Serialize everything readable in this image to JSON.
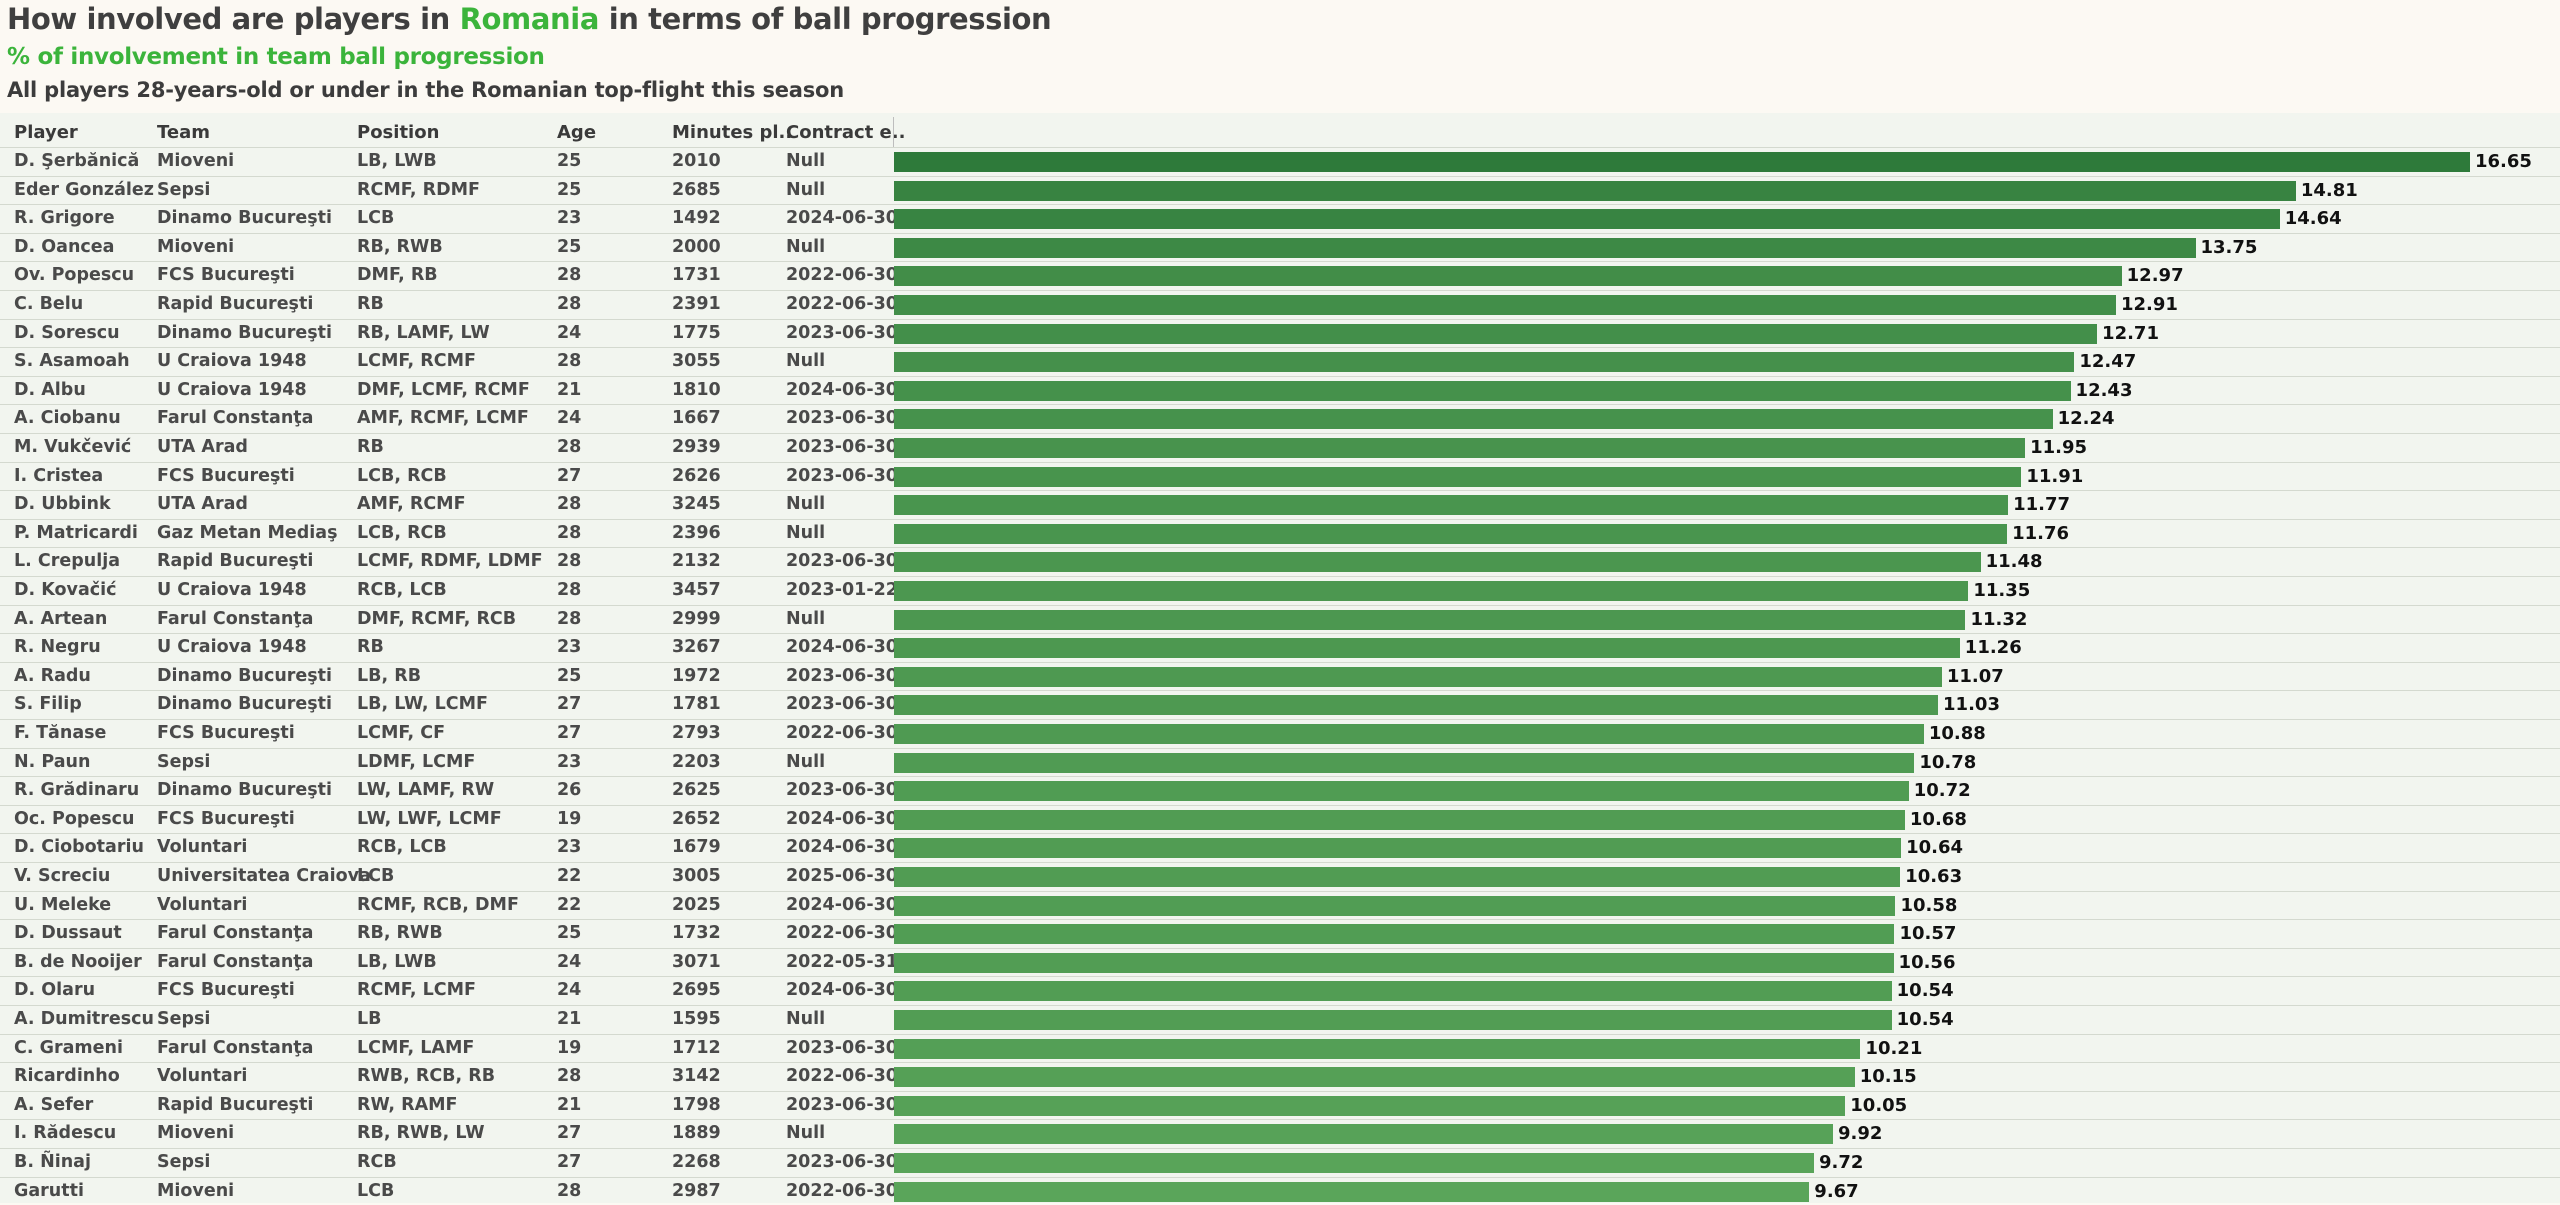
{
  "header": {
    "title_pre": "How involved are players in ",
    "title_highlight": "Romania",
    "title_post": " in terms of ball progression",
    "subtitle": "% of involvement in team ball progression",
    "description": "All players 28-years-old or under in the Romanian top-flight this season"
  },
  "columns": {
    "player": "Player",
    "team": "Team",
    "position": "Position",
    "age": "Age",
    "minutes": "Minutes pl..",
    "contract": "Contract e.."
  },
  "colors": {
    "bar_dark": "#2e7a3a",
    "bar_light": "#5aa55a",
    "accent": "#3bb43b"
  },
  "chart_data": {
    "type": "bar",
    "orientation": "horizontal",
    "title": "How involved are players in Romania in terms of ball progression",
    "subtitle": "% of involvement in team ball progression",
    "xlim": [
      0,
      16.65
    ],
    "rows": [
      {
        "player": "D. Şerbănică",
        "team": "Mioveni",
        "position": "LB, LWB",
        "age": "25",
        "minutes": "2010",
        "contract": "Null",
        "value": 16.65
      },
      {
        "player": "Eder González",
        "team": "Sepsi",
        "position": "RCMF, RDMF",
        "age": "25",
        "minutes": "2685",
        "contract": "Null",
        "value": 14.81
      },
      {
        "player": "R. Grigore",
        "team": "Dinamo Bucureşti",
        "position": "LCB",
        "age": "23",
        "minutes": "1492",
        "contract": "2024-06-30",
        "value": 14.64
      },
      {
        "player": "D. Oancea",
        "team": "Mioveni",
        "position": "RB, RWB",
        "age": "25",
        "minutes": "2000",
        "contract": "Null",
        "value": 13.75
      },
      {
        "player": "Ov. Popescu",
        "team": "FCS Bucureşti",
        "position": "DMF, RB",
        "age": "28",
        "minutes": "1731",
        "contract": "2022-06-30",
        "value": 12.97
      },
      {
        "player": "C. Belu",
        "team": "Rapid Bucureşti",
        "position": "RB",
        "age": "28",
        "minutes": "2391",
        "contract": "2022-06-30",
        "value": 12.91
      },
      {
        "player": "D. Sorescu",
        "team": "Dinamo Bucureşti",
        "position": "RB, LAMF, LW",
        "age": "24",
        "minutes": "1775",
        "contract": "2023-06-30",
        "value": 12.71
      },
      {
        "player": "S. Asamoah",
        "team": "U Craiova 1948",
        "position": "LCMF, RCMF",
        "age": "28",
        "minutes": "3055",
        "contract": "Null",
        "value": 12.47
      },
      {
        "player": "D. Albu",
        "team": "U Craiova 1948",
        "position": "DMF, LCMF, RCMF",
        "age": "21",
        "minutes": "1810",
        "contract": "2024-06-30",
        "value": 12.43
      },
      {
        "player": "A. Ciobanu",
        "team": "Farul Constanţa",
        "position": "AMF, RCMF, LCMF",
        "age": "24",
        "minutes": "1667",
        "contract": "2023-06-30",
        "value": 12.24
      },
      {
        "player": "M. Vukčević",
        "team": "UTA Arad",
        "position": "RB",
        "age": "28",
        "minutes": "2939",
        "contract": "2023-06-30",
        "value": 11.95
      },
      {
        "player": "I. Cristea",
        "team": "FCS Bucureşti",
        "position": "LCB, RCB",
        "age": "27",
        "minutes": "2626",
        "contract": "2023-06-30",
        "value": 11.91
      },
      {
        "player": "D. Ubbink",
        "team": "UTA Arad",
        "position": "AMF, RCMF",
        "age": "28",
        "minutes": "3245",
        "contract": "Null",
        "value": 11.77
      },
      {
        "player": "P. Matricardi",
        "team": "Gaz Metan Mediaş",
        "position": "LCB, RCB",
        "age": "28",
        "minutes": "2396",
        "contract": "Null",
        "value": 11.76
      },
      {
        "player": "L. Crepulja",
        "team": "Rapid Bucureşti",
        "position": "LCMF, RDMF, LDMF",
        "age": "28",
        "minutes": "2132",
        "contract": "2023-06-30",
        "value": 11.48
      },
      {
        "player": "D. Kovačić",
        "team": "U Craiova 1948",
        "position": "RCB, LCB",
        "age": "28",
        "minutes": "3457",
        "contract": "2023-01-22",
        "value": 11.35
      },
      {
        "player": "A. Artean",
        "team": "Farul Constanţa",
        "position": "DMF, RCMF, RCB",
        "age": "28",
        "minutes": "2999",
        "contract": "Null",
        "value": 11.32
      },
      {
        "player": "R. Negru",
        "team": "U Craiova 1948",
        "position": "RB",
        "age": "23",
        "minutes": "3267",
        "contract": "2024-06-30",
        "value": 11.26
      },
      {
        "player": "A. Radu",
        "team": "Dinamo Bucureşti",
        "position": "LB, RB",
        "age": "25",
        "minutes": "1972",
        "contract": "2023-06-30",
        "value": 11.07
      },
      {
        "player": "S. Filip",
        "team": "Dinamo Bucureşti",
        "position": "LB, LW, LCMF",
        "age": "27",
        "minutes": "1781",
        "contract": "2023-06-30",
        "value": 11.03
      },
      {
        "player": "F. Tănase",
        "team": "FCS Bucureşti",
        "position": "LCMF, CF",
        "age": "27",
        "minutes": "2793",
        "contract": "2022-06-30",
        "value": 10.88
      },
      {
        "player": "N. Paun",
        "team": "Sepsi",
        "position": "LDMF, LCMF",
        "age": "23",
        "minutes": "2203",
        "contract": "Null",
        "value": 10.78
      },
      {
        "player": "R. Grădinaru",
        "team": "Dinamo Bucureşti",
        "position": "LW, LAMF, RW",
        "age": "26",
        "minutes": "2625",
        "contract": "2023-06-30",
        "value": 10.72
      },
      {
        "player": "Oc. Popescu",
        "team": "FCS Bucureşti",
        "position": "LW, LWF, LCMF",
        "age": "19",
        "minutes": "2652",
        "contract": "2024-06-30",
        "value": 10.68
      },
      {
        "player": "D. Ciobotariu",
        "team": "Voluntari",
        "position": "RCB, LCB",
        "age": "23",
        "minutes": "1679",
        "contract": "2024-06-30",
        "value": 10.64
      },
      {
        "player": "V. Screciu",
        "team": "Universitatea Craiova",
        "position": "LCB",
        "age": "22",
        "minutes": "3005",
        "contract": "2025-06-30",
        "value": 10.63
      },
      {
        "player": "U. Meleke",
        "team": "Voluntari",
        "position": "RCMF, RCB, DMF",
        "age": "22",
        "minutes": "2025",
        "contract": "2024-06-30",
        "value": 10.58
      },
      {
        "player": "D. Dussaut",
        "team": "Farul Constanţa",
        "position": "RB, RWB",
        "age": "25",
        "minutes": "1732",
        "contract": "2022-06-30",
        "value": 10.57
      },
      {
        "player": "B. de Nooijer",
        "team": "Farul Constanţa",
        "position": "LB, LWB",
        "age": "24",
        "minutes": "3071",
        "contract": "2022-05-31",
        "value": 10.56
      },
      {
        "player": "D. Olaru",
        "team": "FCS Bucureşti",
        "position": "RCMF, LCMF",
        "age": "24",
        "minutes": "2695",
        "contract": "2024-06-30",
        "value": 10.54
      },
      {
        "player": "A. Dumitrescu",
        "team": "Sepsi",
        "position": "LB",
        "age": "21",
        "minutes": "1595",
        "contract": "Null",
        "value": 10.54
      },
      {
        "player": "C. Grameni",
        "team": "Farul Constanţa",
        "position": "LCMF, LAMF",
        "age": "19",
        "minutes": "1712",
        "contract": "2023-06-30",
        "value": 10.21
      },
      {
        "player": "Ricardinho",
        "team": "Voluntari",
        "position": "RWB, RCB, RB",
        "age": "28",
        "minutes": "3142",
        "contract": "2022-06-30",
        "value": 10.15
      },
      {
        "player": "A. Sefer",
        "team": "Rapid Bucureşti",
        "position": "RW, RAMF",
        "age": "21",
        "minutes": "1798",
        "contract": "2023-06-30",
        "value": 10.05
      },
      {
        "player": "I. Rădescu",
        "team": "Mioveni",
        "position": "RB, RWB, LW",
        "age": "27",
        "minutes": "1889",
        "contract": "Null",
        "value": 9.92
      },
      {
        "player": "B. Ñinaj",
        "team": "Sepsi",
        "position": "RCB",
        "age": "27",
        "minutes": "2268",
        "contract": "2023-06-30",
        "value": 9.72
      },
      {
        "player": "Garutti",
        "team": "Mioveni",
        "position": "LCB",
        "age": "28",
        "minutes": "2987",
        "contract": "2022-06-30",
        "value": 9.67
      }
    ]
  }
}
